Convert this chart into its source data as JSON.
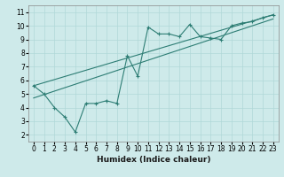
{
  "xlabel": "Humidex (Indice chaleur)",
  "ylabel": "",
  "xlim": [
    -0.5,
    23.5
  ],
  "ylim": [
    1.5,
    11.5
  ],
  "xticks": [
    0,
    1,
    2,
    3,
    4,
    5,
    6,
    7,
    8,
    9,
    10,
    11,
    12,
    13,
    14,
    15,
    16,
    17,
    18,
    19,
    20,
    21,
    22,
    23
  ],
  "yticks": [
    2,
    3,
    4,
    5,
    6,
    7,
    8,
    9,
    10,
    11
  ],
  "bg_color": "#ceeaea",
  "grid_color": "#b0d8d8",
  "line_color": "#2d7d74",
  "line1_x": [
    0,
    1,
    2,
    3,
    4,
    5,
    6,
    7,
    8,
    9,
    10,
    11,
    12,
    13,
    14,
    15,
    16,
    17,
    18,
    19,
    20,
    21,
    22,
    23
  ],
  "line1_y": [
    5.6,
    5.0,
    4.0,
    3.3,
    2.2,
    4.3,
    4.3,
    4.5,
    4.3,
    7.8,
    6.3,
    9.9,
    9.4,
    9.4,
    9.2,
    10.1,
    9.2,
    9.1,
    9.0,
    10.0,
    10.2,
    10.3,
    10.6,
    10.8
  ],
  "line2_x": [
    0,
    23
  ],
  "line2_y": [
    5.6,
    10.8
  ],
  "line3_x": [
    0,
    23
  ],
  "line3_y": [
    4.7,
    10.5
  ],
  "tick_fontsize": 5.5,
  "xlabel_fontsize": 6.5,
  "xlabel_fontweight": "bold"
}
